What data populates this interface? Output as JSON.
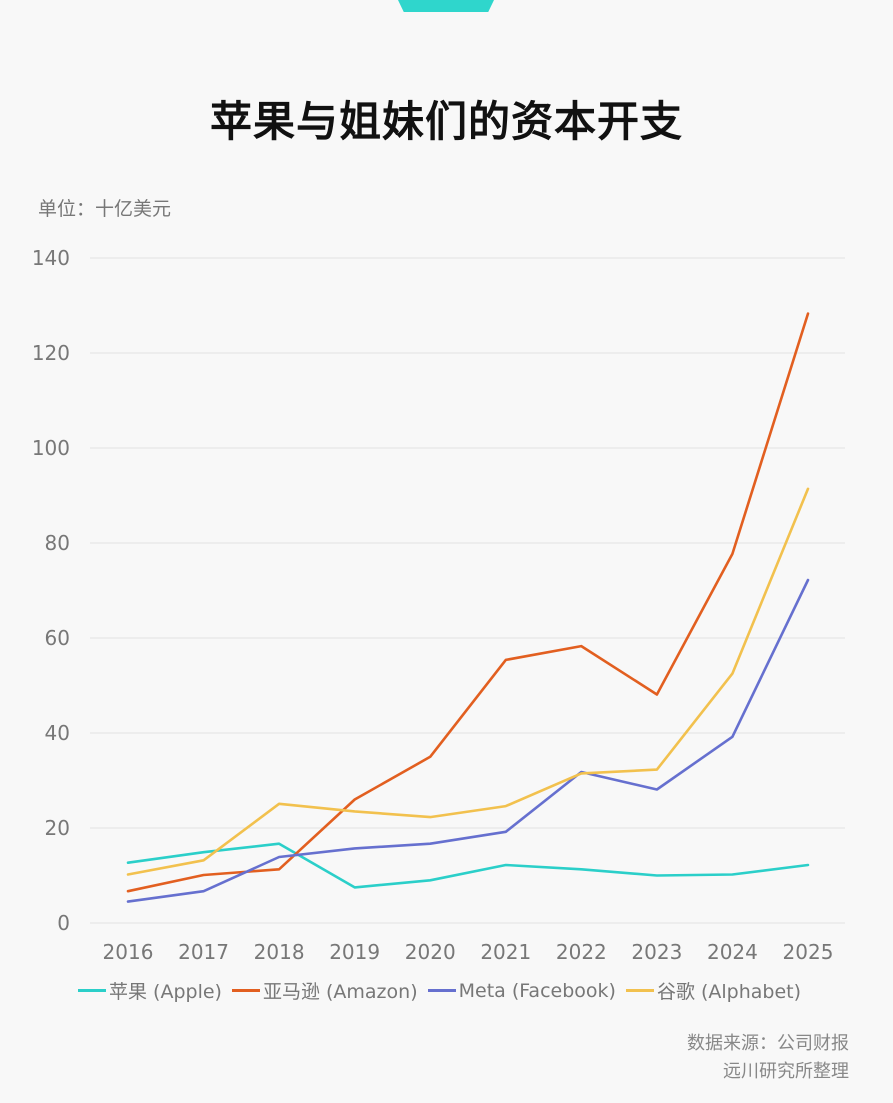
{
  "title": "苹果与姐妹们的资本开支",
  "unit_label": "单位：十亿美元",
  "source": {
    "line1": "数据来源：公司财报",
    "line2": "远川研究所整理"
  },
  "colors": {
    "accent": "#2fd6cc",
    "gridline": "#e2e2e2"
  },
  "chart_data": {
    "type": "line",
    "x": [
      "2016",
      "2017",
      "2018",
      "2019",
      "2020",
      "2021",
      "2022",
      "2023",
      "2024",
      "2025"
    ],
    "ylim": [
      0,
      140
    ],
    "yticks": [
      "0",
      "20",
      "40",
      "60",
      "80",
      "100",
      "120",
      "140"
    ],
    "ylabel": "",
    "xlabel": "",
    "grid": true,
    "legend_position": "bottom",
    "series": [
      {
        "name": "苹果 (Apple)",
        "color": "#2bcfc9",
        "values": [
          12.7,
          14.9,
          16.7,
          7.5,
          9.0,
          12.2,
          11.3,
          10.0,
          10.2,
          12.2
        ]
      },
      {
        "name": "亚马逊 (Amazon)",
        "color": "#e25f20",
        "values": [
          6.7,
          10.1,
          11.3,
          26.0,
          35.0,
          55.4,
          58.3,
          48.1,
          77.7,
          128.3
        ]
      },
      {
        "name": "Meta (Facebook)",
        "color": "#6670cf",
        "values": [
          4.5,
          6.7,
          13.9,
          15.7,
          16.7,
          19.2,
          31.8,
          28.1,
          39.2,
          72.2
        ]
      },
      {
        "name": "谷歌 (Alphabet)",
        "color": "#f2c14e",
        "values": [
          10.2,
          13.2,
          25.1,
          23.5,
          22.3,
          24.6,
          31.5,
          32.3,
          52.5,
          91.4
        ]
      }
    ]
  }
}
